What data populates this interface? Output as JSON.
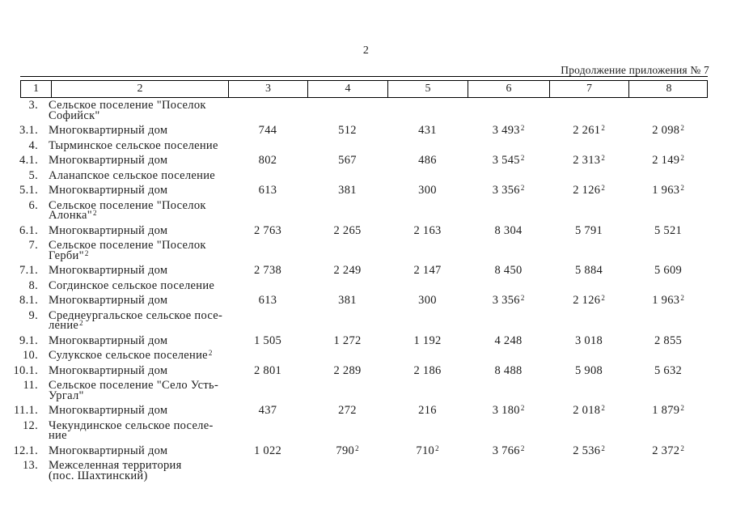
{
  "page": {
    "number": "2",
    "continuation_note": "Продолжение приложения № 7"
  },
  "table": {
    "column_numbers": [
      "1",
      "2",
      "3",
      "4",
      "5",
      "6",
      "7",
      "8"
    ],
    "rows": [
      {
        "num": "3.",
        "lines": [
          {
            "t": "Сельское поселение \"Поселок"
          },
          {
            "t": "Софийск\""
          }
        ]
      },
      {
        "num": "3.1.",
        "lines": [
          {
            "t": "Многоквартирный дом"
          }
        ],
        "values": [
          {
            "v": "744"
          },
          {
            "v": "512"
          },
          {
            "v": "431"
          },
          {
            "v": "3 493",
            "sup": "2"
          },
          {
            "v": "2 261",
            "sup": "2"
          },
          {
            "v": "2 098",
            "sup": "2"
          }
        ]
      },
      {
        "num": "4.",
        "lines": [
          {
            "t": "Тырминское сельское поселение"
          }
        ]
      },
      {
        "num": "4.1.",
        "lines": [
          {
            "t": "Многоквартирный дом"
          }
        ],
        "values": [
          {
            "v": "802"
          },
          {
            "v": "567"
          },
          {
            "v": "486"
          },
          {
            "v": "3 545",
            "sup": "2"
          },
          {
            "v": "2 313",
            "sup": "2"
          },
          {
            "v": "2 149",
            "sup": "2"
          }
        ]
      },
      {
        "num": "5.",
        "lines": [
          {
            "t": "Аланапское сельское поселение"
          }
        ]
      },
      {
        "num": "5.1.",
        "lines": [
          {
            "t": "Многоквартирный дом"
          }
        ],
        "values": [
          {
            "v": "613"
          },
          {
            "v": "381"
          },
          {
            "v": "300"
          },
          {
            "v": "3 356",
            "sup": "2"
          },
          {
            "v": "2 126",
            "sup": "2"
          },
          {
            "v": "1 963",
            "sup": "2"
          }
        ]
      },
      {
        "num": "6.",
        "lines": [
          {
            "t": "Сельское поселение \"Поселок"
          },
          {
            "t": "Алонка\"",
            "sup": "2"
          }
        ]
      },
      {
        "num": "6.1.",
        "lines": [
          {
            "t": "Многоквартирный дом"
          }
        ],
        "values": [
          {
            "v": "2 763"
          },
          {
            "v": "2 265"
          },
          {
            "v": "2 163"
          },
          {
            "v": "8 304"
          },
          {
            "v": "5 791"
          },
          {
            "v": "5 521"
          }
        ]
      },
      {
        "num": "7.",
        "lines": [
          {
            "t": "Сельское поселение \"Поселок"
          },
          {
            "t": "Герби\"",
            "sup": "2"
          }
        ]
      },
      {
        "num": "7.1.",
        "lines": [
          {
            "t": "Многоквартирный дом"
          }
        ],
        "values": [
          {
            "v": "2 738"
          },
          {
            "v": "2 249"
          },
          {
            "v": "2 147"
          },
          {
            "v": "8 450"
          },
          {
            "v": "5 884"
          },
          {
            "v": "5 609"
          }
        ]
      },
      {
        "num": "8.",
        "lines": [
          {
            "t": "Согдинское сельское поселение"
          }
        ]
      },
      {
        "num": "8.1.",
        "lines": [
          {
            "t": "Многоквартирный дом"
          }
        ],
        "values": [
          {
            "v": "613"
          },
          {
            "v": "381"
          },
          {
            "v": "300"
          },
          {
            "v": "3 356",
            "sup": "2"
          },
          {
            "v": "2 126",
            "sup": "2"
          },
          {
            "v": "1 963",
            "sup": "2"
          }
        ]
      },
      {
        "num": "9.",
        "lines": [
          {
            "t": "Среднеургальское сельское посе-"
          },
          {
            "t": "ление",
            "sup": "2"
          }
        ]
      },
      {
        "num": "9.1.",
        "lines": [
          {
            "t": "Многоквартирный дом"
          }
        ],
        "values": [
          {
            "v": "1 505"
          },
          {
            "v": "1 272"
          },
          {
            "v": "1 192"
          },
          {
            "v": "4 248"
          },
          {
            "v": "3 018"
          },
          {
            "v": "2 855"
          }
        ]
      },
      {
        "num": "10.",
        "lines": [
          {
            "t": "Сулукское сельское поселение",
            "sup": "2"
          }
        ]
      },
      {
        "num": "10.1.",
        "lines": [
          {
            "t": "Многоквартирный дом"
          }
        ],
        "values": [
          {
            "v": "2 801"
          },
          {
            "v": "2 289"
          },
          {
            "v": "2 186"
          },
          {
            "v": "8 488"
          },
          {
            "v": "5 908"
          },
          {
            "v": "5 632"
          }
        ]
      },
      {
        "num": "11.",
        "lines": [
          {
            "t": "Сельское поселение \"Село Усть-"
          },
          {
            "t": "Ургал\""
          }
        ]
      },
      {
        "num": "11.1.",
        "lines": [
          {
            "t": "Многоквартирный дом"
          }
        ],
        "values": [
          {
            "v": "437"
          },
          {
            "v": "272"
          },
          {
            "v": "216"
          },
          {
            "v": "3 180",
            "sup": "2"
          },
          {
            "v": "2 018",
            "sup": "2"
          },
          {
            "v": "1 879",
            "sup": "2"
          }
        ]
      },
      {
        "num": "12.",
        "lines": [
          {
            "t": "Чекундинское сельское поселе-"
          },
          {
            "t": "ние"
          }
        ]
      },
      {
        "num": "12.1.",
        "lines": [
          {
            "t": "Многоквартирный дом"
          }
        ],
        "values": [
          {
            "v": "1 022"
          },
          {
            "v": "790",
            "sup": "2"
          },
          {
            "v": "710",
            "sup": "2"
          },
          {
            "v": "3 766",
            "sup": "2"
          },
          {
            "v": "2 536",
            "sup": "2"
          },
          {
            "v": "2 372",
            "sup": "2"
          }
        ]
      },
      {
        "num": "13.",
        "lines": [
          {
            "t": "Межселенная территория"
          },
          {
            "t": "(пос. Шахтинский)"
          }
        ]
      }
    ]
  }
}
